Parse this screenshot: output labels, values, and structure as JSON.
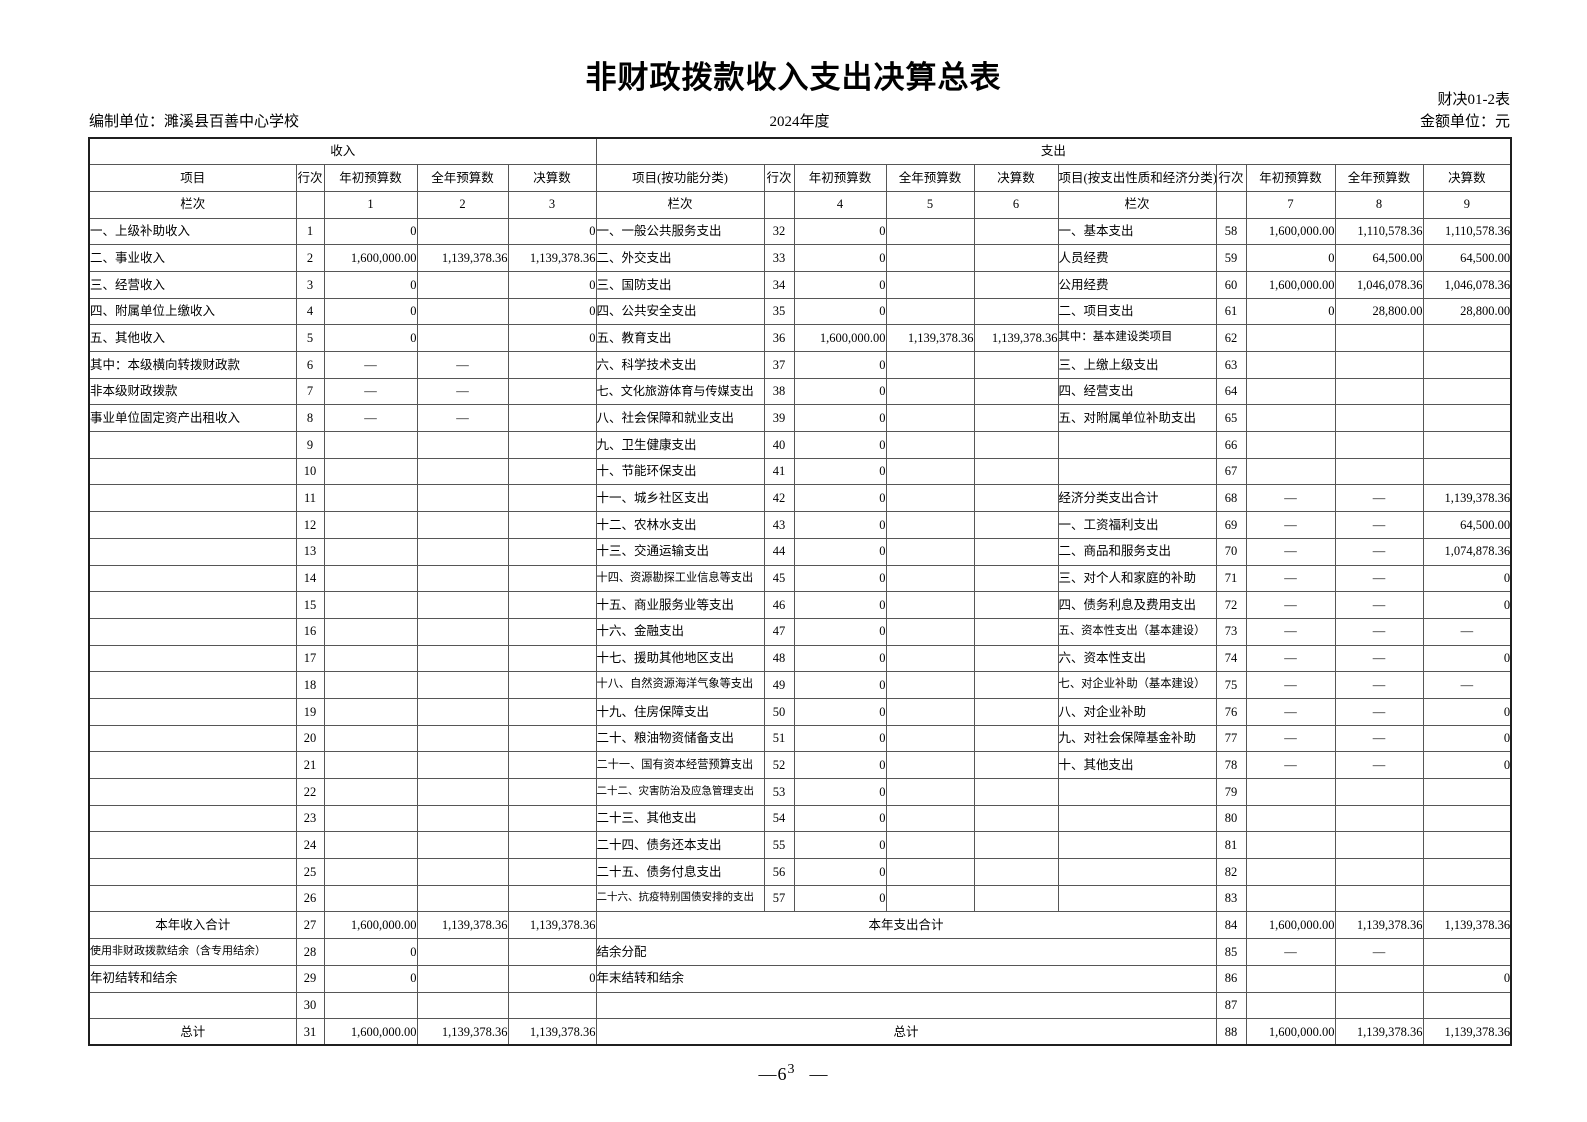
{
  "page": {
    "title": "非财政拨款收入支出决算总表",
    "form_code": "财决01-2表",
    "unit": "编制单位：濉溪县百善中心学校",
    "year": "2024年度",
    "amount_unit": "金额单位：元",
    "page_number_main": "—6",
    "page_number_sup": "3",
    "page_number_tail": "—"
  },
  "table": {
    "sections": {
      "income": "收入",
      "expenditure": "支出"
    },
    "headers": {
      "income": [
        "项目",
        "行次",
        "年初预算数",
        "全年预算数",
        "决算数"
      ],
      "function": [
        "项目(按功能分类)",
        "行次",
        "年初预算数",
        "全年预算数",
        "决算数"
      ],
      "economic": [
        "项目(按支出性质和经济分类)",
        "行次",
        "年初预算数",
        "全年预算数",
        "决算数"
      ]
    },
    "col_index": {
      "label": "栏次",
      "income": [
        "1",
        "2",
        "3"
      ],
      "function": [
        "4",
        "5",
        "6"
      ],
      "economic": [
        "7",
        "8",
        "9"
      ]
    },
    "rows": [
      {
        "income": [
          "一、上级补助收入",
          "1",
          "0",
          "",
          "0"
        ],
        "function": [
          "一、一般公共服务支出",
          "32",
          "0",
          "",
          ""
        ],
        "economic": [
          "一、基本支出",
          "58",
          "1,600,000.00",
          "1,110,578.36",
          "1,110,578.36"
        ]
      },
      {
        "income": [
          "二、事业收入",
          "2",
          "1,600,000.00",
          "1,139,378.36",
          "1,139,378.36"
        ],
        "function": [
          "二、外交支出",
          "33",
          "0",
          "",
          ""
        ],
        "economic": [
          "人员经费",
          "59",
          "0",
          "64,500.00",
          "64,500.00"
        ],
        "ind": [
          0,
          0,
          3
        ]
      },
      {
        "income": [
          "三、经营收入",
          "3",
          "0",
          "",
          "0"
        ],
        "function": [
          "三、国防支出",
          "34",
          "0",
          "",
          ""
        ],
        "economic": [
          "公用经费",
          "60",
          "1,600,000.00",
          "1,046,078.36",
          "1,046,078.36"
        ],
        "ind": [
          0,
          0,
          3
        ]
      },
      {
        "income": [
          "四、附属单位上缴收入",
          "4",
          "0",
          "",
          "0"
        ],
        "function": [
          "四、公共安全支出",
          "35",
          "0",
          "",
          ""
        ],
        "economic": [
          "二、项目支出",
          "61",
          "0",
          "28,800.00",
          "28,800.00"
        ]
      },
      {
        "income": [
          "五、其他收入",
          "5",
          "0",
          "",
          "0"
        ],
        "function": [
          "五、教育支出",
          "36",
          "1,600,000.00",
          "1,139,378.36",
          "1,139,378.36"
        ],
        "economic": [
          "其中：基本建设类项目",
          "62",
          "",
          "",
          ""
        ],
        "ind": [
          0,
          0,
          2
        ]
      },
      {
        "income": [
          "其中：本级横向转拨财政款",
          "6",
          "—",
          "—",
          ""
        ],
        "function": [
          "六、科学技术支出",
          "37",
          "0",
          "",
          ""
        ],
        "economic": [
          "三、上缴上级支出",
          "63",
          "",
          "",
          ""
        ],
        "ind": [
          1,
          0,
          0
        ]
      },
      {
        "income": [
          "非本级财政拨款",
          "7",
          "—",
          "—",
          ""
        ],
        "function": [
          "七、文化旅游体育与传媒支出",
          "38",
          "0",
          "",
          ""
        ],
        "economic": [
          "四、经营支出",
          "64",
          "",
          "",
          ""
        ],
        "ind": [
          3,
          0,
          0
        ]
      },
      {
        "income": [
          "事业单位固定资产出租收入",
          "8",
          "—",
          "—",
          ""
        ],
        "function": [
          "八、社会保障和就业支出",
          "39",
          "0",
          "",
          ""
        ],
        "economic": [
          "五、对附属单位补助支出",
          "65",
          "",
          "",
          ""
        ],
        "ind": [
          3,
          0,
          0
        ]
      },
      {
        "income": [
          "",
          "9",
          "",
          "",
          ""
        ],
        "function": [
          "九、卫生健康支出",
          "40",
          "0",
          "",
          ""
        ],
        "economic": [
          "",
          "66",
          "",
          "",
          ""
        ]
      },
      {
        "income": [
          "",
          "10",
          "",
          "",
          ""
        ],
        "function": [
          "十、节能环保支出",
          "41",
          "0",
          "",
          ""
        ],
        "economic": [
          "",
          "67",
          "",
          "",
          ""
        ]
      },
      {
        "income": [
          "",
          "11",
          "",
          "",
          ""
        ],
        "function": [
          "十一、城乡社区支出",
          "42",
          "0",
          "",
          ""
        ],
        "economic": [
          "经济分类支出合计",
          "68",
          "—",
          "—",
          "1,139,378.36"
        ],
        "ind": [
          0,
          0,
          2
        ]
      },
      {
        "income": [
          "",
          "12",
          "",
          "",
          ""
        ],
        "function": [
          "十二、农林水支出",
          "43",
          "0",
          "",
          ""
        ],
        "economic": [
          "一、工资福利支出",
          "69",
          "—",
          "—",
          "64,500.00"
        ]
      },
      {
        "income": [
          "",
          "13",
          "",
          "",
          ""
        ],
        "function": [
          "十三、交通运输支出",
          "44",
          "0",
          "",
          ""
        ],
        "economic": [
          "二、商品和服务支出",
          "70",
          "—",
          "—",
          "1,074,878.36"
        ]
      },
      {
        "income": [
          "",
          "14",
          "",
          "",
          ""
        ],
        "function": [
          "十四、资源勘探工业信息等支出",
          "45",
          "0",
          "",
          ""
        ],
        "economic": [
          "三、对个人和家庭的补助",
          "71",
          "—",
          "—",
          "0"
        ]
      },
      {
        "income": [
          "",
          "15",
          "",
          "",
          ""
        ],
        "function": [
          "十五、商业服务业等支出",
          "46",
          "0",
          "",
          ""
        ],
        "economic": [
          "四、债务利息及费用支出",
          "72",
          "—",
          "—",
          "0"
        ]
      },
      {
        "income": [
          "",
          "16",
          "",
          "",
          ""
        ],
        "function": [
          "十六、金融支出",
          "47",
          "0",
          "",
          ""
        ],
        "economic": [
          "五、资本性支出（基本建设）",
          "73",
          "—",
          "—",
          "—"
        ]
      },
      {
        "income": [
          "",
          "17",
          "",
          "",
          ""
        ],
        "function": [
          "十七、援助其他地区支出",
          "48",
          "0",
          "",
          ""
        ],
        "economic": [
          "六、资本性支出",
          "74",
          "—",
          "—",
          "0"
        ]
      },
      {
        "income": [
          "",
          "18",
          "",
          "",
          ""
        ],
        "function": [
          "十八、自然资源海洋气象等支出",
          "49",
          "0",
          "",
          ""
        ],
        "economic": [
          "七、对企业补助（基本建设）",
          "75",
          "—",
          "—",
          "—"
        ]
      },
      {
        "income": [
          "",
          "19",
          "",
          "",
          ""
        ],
        "function": [
          "十九、住房保障支出",
          "50",
          "0",
          "",
          ""
        ],
        "economic": [
          "八、对企业补助",
          "76",
          "—",
          "—",
          "0"
        ]
      },
      {
        "income": [
          "",
          "20",
          "",
          "",
          ""
        ],
        "function": [
          "二十、粮油物资储备支出",
          "51",
          "0",
          "",
          ""
        ],
        "economic": [
          "九、对社会保障基金补助",
          "77",
          "—",
          "—",
          "0"
        ]
      },
      {
        "income": [
          "",
          "21",
          "",
          "",
          ""
        ],
        "function": [
          "二十一、国有资本经营预算支出",
          "52",
          "0",
          "",
          ""
        ],
        "economic": [
          "十、其他支出",
          "78",
          "—",
          "—",
          "0"
        ]
      },
      {
        "income": [
          "",
          "22",
          "",
          "",
          ""
        ],
        "function": [
          "二十二、灾害防治及应急管理支出",
          "53",
          "0",
          "",
          ""
        ],
        "economic": [
          "",
          "79",
          "",
          "",
          ""
        ]
      },
      {
        "income": [
          "",
          "23",
          "",
          "",
          ""
        ],
        "function": [
          "二十三、其他支出",
          "54",
          "0",
          "",
          ""
        ],
        "economic": [
          "",
          "80",
          "",
          "",
          ""
        ]
      },
      {
        "income": [
          "",
          "24",
          "",
          "",
          ""
        ],
        "function": [
          "二十四、债务还本支出",
          "55",
          "0",
          "",
          ""
        ],
        "economic": [
          "",
          "81",
          "",
          "",
          ""
        ]
      },
      {
        "income": [
          "",
          "25",
          "",
          "",
          ""
        ],
        "function": [
          "二十五、债务付息支出",
          "56",
          "0",
          "",
          ""
        ],
        "economic": [
          "",
          "82",
          "",
          "",
          ""
        ]
      },
      {
        "income": [
          "",
          "26",
          "",
          "",
          ""
        ],
        "function": [
          "二十六、抗疫特别国债安排的支出",
          "57",
          "0",
          "",
          ""
        ],
        "economic": [
          "",
          "83",
          "",
          "",
          ""
        ]
      }
    ],
    "footer_rows": [
      {
        "income": [
          "本年收入合计",
          "27",
          "1,600,000.00",
          "1,139,378.36",
          "1,139,378.36"
        ],
        "merged": [
          "本年支出合计",
          "84",
          "1,600,000.00",
          "1,139,378.36",
          "1,139,378.36"
        ],
        "style": [
          "cb",
          "cb"
        ]
      },
      {
        "income": [
          "使用非财政拨款结余（含专用结余）",
          "28",
          "0",
          "",
          ""
        ],
        "merged": [
          "结余分配",
          "85",
          "—",
          "—",
          ""
        ],
        "style": [
          "ind1",
          "ind1"
        ]
      },
      {
        "income": [
          "年初结转和结余",
          "29",
          "0",
          "",
          "0"
        ],
        "merged": [
          "年末结转和结余",
          "86",
          "",
          "",
          "0"
        ],
        "style": [
          "ind1",
          "ind1"
        ]
      },
      {
        "income": [
          "",
          "30",
          "",
          "",
          ""
        ],
        "merged": [
          "",
          "87",
          "",
          "",
          ""
        ],
        "style": [
          "",
          ""
        ]
      },
      {
        "income": [
          "总计",
          "31",
          "1,600,000.00",
          "1,139,378.36",
          "1,139,378.36"
        ],
        "merged": [
          "总计",
          "88",
          "1,600,000.00",
          "1,139,378.36",
          "1,139,378.36"
        ],
        "style": [
          "cb",
          "cb"
        ]
      }
    ]
  }
}
